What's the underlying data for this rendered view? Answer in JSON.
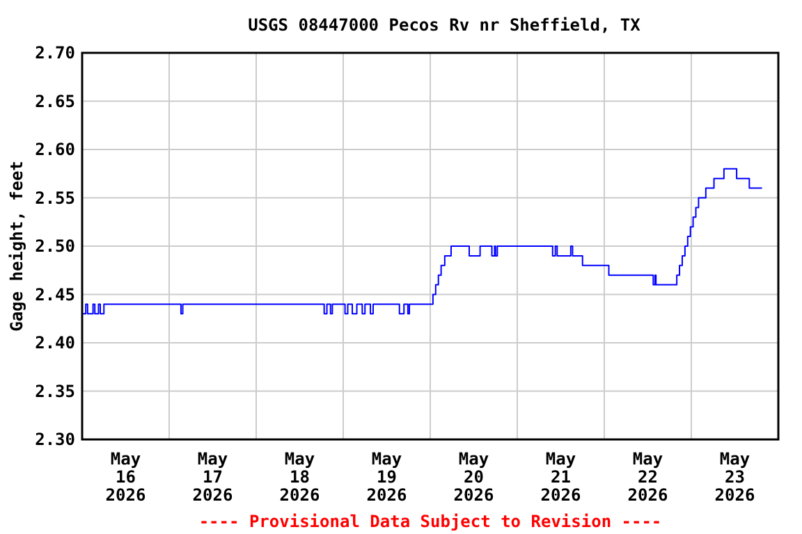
{
  "chart_data": {
    "type": "step",
    "title": "USGS 08447000 Pecos Rv nr Sheffield, TX",
    "ylabel": "Gage height, feet",
    "annotations": [
      "---- Provisional Data Subject to Revision ----"
    ],
    "xlim": [
      "2026-05-16T00:00",
      "2026-05-24T00:00"
    ],
    "xticks": [
      {
        "value": "2026-05-16T12:00",
        "label": "May\n16\n2026"
      },
      {
        "value": "2026-05-17T12:00",
        "label": "May\n17\n2026"
      },
      {
        "value": "2026-05-18T12:00",
        "label": "May\n18\n2026"
      },
      {
        "value": "2026-05-19T12:00",
        "label": "May\n19\n2026"
      },
      {
        "value": "2026-05-20T12:00",
        "label": "May\n20\n2026"
      },
      {
        "value": "2026-05-21T12:00",
        "label": "May\n21\n2026"
      },
      {
        "value": "2026-05-22T12:00",
        "label": "May\n22\n2026"
      },
      {
        "value": "2026-05-23T12:00",
        "label": "May\n23\n2026"
      },
      {
        "value": "2026-05-17T00:00",
        "label": null
      },
      {
        "value": "2026-05-18T00:00",
        "label": null
      },
      {
        "value": "2026-05-19T00:00",
        "label": null
      },
      {
        "value": "2026-05-20T00:00",
        "label": null
      },
      {
        "value": "2026-05-21T00:00",
        "label": null
      },
      {
        "value": "2026-05-22T00:00",
        "label": null
      },
      {
        "value": "2026-05-23T00:00",
        "label": null
      }
    ],
    "ylim": [
      2.3,
      2.7
    ],
    "yticks": [
      {
        "value": 2.3,
        "label": "2.30"
      },
      {
        "value": 2.35,
        "label": "2.35"
      },
      {
        "value": 2.4,
        "label": "2.40"
      },
      {
        "value": 2.45,
        "label": "2.45"
      },
      {
        "value": 2.5,
        "label": "2.50"
      },
      {
        "value": 2.55,
        "label": "2.55"
      },
      {
        "value": 2.6,
        "label": "2.60"
      },
      {
        "value": 2.65,
        "label": "2.65"
      },
      {
        "value": 2.7,
        "label": "2.70"
      }
    ],
    "grid": true,
    "marker": "none",
    "line_style": "solid",
    "series": [
      {
        "color": "#0000ff",
        "x": [
          "2026-05-16T00:00",
          "2026-05-16T01:00",
          "2026-05-16T01:30",
          "2026-05-16T03:00",
          "2026-05-16T03:30",
          "2026-05-16T04:30",
          "2026-05-16T05:00",
          "2026-05-16T06:00",
          "2026-05-17T03:15",
          "2026-05-17T03:45",
          "2026-05-18T18:45",
          "2026-05-18T19:30",
          "2026-05-18T20:30",
          "2026-05-18T21:00",
          "2026-05-19T00:30",
          "2026-05-19T01:15",
          "2026-05-19T02:30",
          "2026-05-19T03:45",
          "2026-05-19T05:15",
          "2026-05-19T06:00",
          "2026-05-19T07:30",
          "2026-05-19T08:15",
          "2026-05-19T15:30",
          "2026-05-19T16:45",
          "2026-05-19T17:50",
          "2026-05-19T18:15",
          "2026-05-20T00:45",
          "2026-05-20T01:30",
          "2026-05-20T02:15",
          "2026-05-20T03:00",
          "2026-05-20T04:00",
          "2026-05-20T05:45",
          "2026-05-20T10:45",
          "2026-05-20T13:45",
          "2026-05-20T17:00",
          "2026-05-20T17:45",
          "2026-05-20T18:00",
          "2026-05-20T18:30",
          "2026-05-21T09:45",
          "2026-05-21T10:30",
          "2026-05-21T11:00",
          "2026-05-21T14:45",
          "2026-05-21T15:15",
          "2026-05-21T18:00",
          "2026-05-22T01:15",
          "2026-05-22T13:30",
          "2026-05-22T14:00",
          "2026-05-22T14:15",
          "2026-05-22T20:00",
          "2026-05-22T20:45",
          "2026-05-22T21:30",
          "2026-05-22T22:15",
          "2026-05-22T23:00",
          "2026-05-22T23:45",
          "2026-05-23T00:30",
          "2026-05-23T01:15",
          "2026-05-23T02:00",
          "2026-05-23T04:00",
          "2026-05-23T06:15",
          "2026-05-23T09:00",
          "2026-05-23T12:30",
          "2026-05-23T16:00",
          "2026-05-23T19:30"
        ],
        "values": [
          2.43,
          2.44,
          2.43,
          2.44,
          2.43,
          2.44,
          2.43,
          2.44,
          2.43,
          2.44,
          2.43,
          2.44,
          2.43,
          2.44,
          2.43,
          2.44,
          2.43,
          2.44,
          2.43,
          2.44,
          2.43,
          2.44,
          2.43,
          2.44,
          2.43,
          2.44,
          2.45,
          2.46,
          2.47,
          2.48,
          2.49,
          2.5,
          2.49,
          2.5,
          2.49,
          2.5,
          2.49,
          2.5,
          2.49,
          2.5,
          2.49,
          2.5,
          2.49,
          2.48,
          2.47,
          2.46,
          2.47,
          2.46,
          2.47,
          2.48,
          2.49,
          2.5,
          2.51,
          2.52,
          2.53,
          2.54,
          2.55,
          2.56,
          2.57,
          2.58,
          2.57,
          2.56,
          2.56
        ]
      }
    ]
  }
}
